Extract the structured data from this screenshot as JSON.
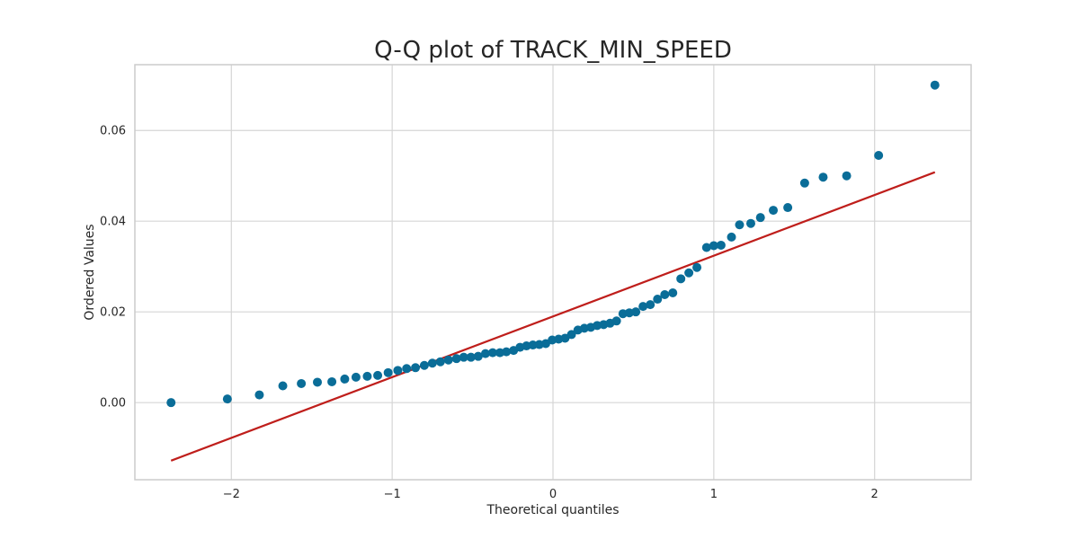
{
  "chart_data": {
    "type": "scatter",
    "title": "Q-Q plot of TRACK_MIN_SPEED",
    "xlabel": "Theoretical quantiles",
    "ylabel": "Ordered Values",
    "xlim": [
      -2.6,
      2.6
    ],
    "ylim": [
      -0.017,
      0.0745
    ],
    "x_ticks": [
      -2,
      -1,
      0,
      1,
      2
    ],
    "x_tick_labels": [
      "−2",
      "−1",
      "0",
      "1",
      "2"
    ],
    "y_ticks": [
      0.0,
      0.02,
      0.04,
      0.06
    ],
    "y_tick_labels": [
      "0.00",
      "0.02",
      "0.04",
      "0.06"
    ],
    "grid": true,
    "series": [
      {
        "kind": "points",
        "color": "#0a6d98",
        "x": [
          -2.375,
          -2.025,
          -1.826,
          -1.68,
          -1.565,
          -1.465,
          -1.375,
          -1.295,
          -1.225,
          -1.155,
          -1.09,
          -1.025,
          -0.965,
          -0.91,
          -0.855,
          -0.8,
          -0.75,
          -0.7,
          -0.65,
          -0.6,
          -0.555,
          -0.51,
          -0.465,
          -0.42,
          -0.375,
          -0.33,
          -0.29,
          -0.245,
          -0.205,
          -0.165,
          -0.125,
          -0.085,
          -0.045,
          -0.005,
          0.035,
          0.075,
          0.115,
          0.155,
          0.195,
          0.235,
          0.275,
          0.315,
          0.355,
          0.395,
          0.435,
          0.475,
          0.515,
          0.56,
          0.605,
          0.65,
          0.695,
          0.745,
          0.795,
          0.845,
          0.895,
          0.955,
          1.0,
          1.045,
          1.11,
          1.16,
          1.23,
          1.29,
          1.37,
          1.46,
          1.565,
          1.68,
          1.826,
          2.025,
          2.375
        ],
        "y": [
          0.0,
          0.0008,
          0.0017,
          0.0037,
          0.0042,
          0.0045,
          0.0046,
          0.0052,
          0.0056,
          0.0058,
          0.006,
          0.0066,
          0.0071,
          0.0075,
          0.0077,
          0.0082,
          0.0087,
          0.009,
          0.0094,
          0.0097,
          0.01,
          0.01,
          0.0102,
          0.0108,
          0.011,
          0.011,
          0.0112,
          0.0115,
          0.0122,
          0.0125,
          0.0127,
          0.0128,
          0.013,
          0.0138,
          0.014,
          0.0142,
          0.015,
          0.016,
          0.0164,
          0.0166,
          0.017,
          0.0172,
          0.0175,
          0.018,
          0.0196,
          0.0198,
          0.02,
          0.0212,
          0.0216,
          0.0228,
          0.0238,
          0.0242,
          0.0273,
          0.0286,
          0.0298,
          0.0342,
          0.0346,
          0.0347,
          0.0365,
          0.0392,
          0.0395,
          0.0408,
          0.0424,
          0.043,
          0.0484,
          0.0497,
          0.05,
          0.0545,
          0.07
        ]
      },
      {
        "kind": "line",
        "color": "#bf1e1b",
        "x": [
          -2.375,
          2.375
        ],
        "y": [
          -0.0128,
          0.0508
        ]
      }
    ]
  }
}
